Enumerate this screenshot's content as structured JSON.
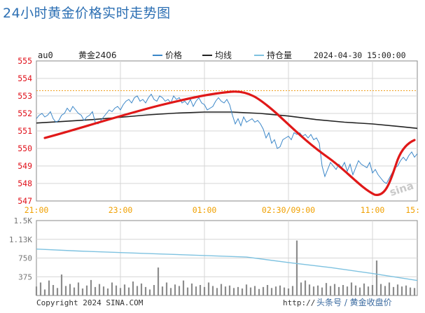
{
  "page": {
    "title": "24小时黄金价格实时走势图",
    "symbol": "au0",
    "contract": "黄金2406",
    "legend_price": "价格",
    "legend_avg": "均线",
    "legend_oi": "持仓量",
    "datetime": "2024-04-30 15:00:00",
    "copyright": "Copyright 2024 SINA.COM",
    "watermark_url": "http://",
    "watermark_text": "头条号 / 黄金收盘价",
    "logo_text": "sina"
  },
  "colors": {
    "price": "#3a86c8",
    "avg": "#222222",
    "oi": "#7ec2e0",
    "annotation": "#e01818",
    "reference": "#f0a020",
    "grid": "#d6d6d6",
    "price_axis": "#e0101a",
    "time_axis": "#f0a000",
    "volume_axis": "#777777"
  },
  "chart_data": [
    {
      "type": "line",
      "title": "24小时黄金价格实时走势图",
      "ylim": [
        547,
        555
      ],
      "y_ticks": [
        "555",
        "554",
        "553",
        "552",
        "551",
        "550",
        "549",
        "548",
        "547"
      ],
      "x_ticks": [
        "21:00",
        "23:00",
        "01:00",
        "02:30/09:00",
        "11:00",
        "15:"
      ],
      "reference_line": 553.3,
      "series": [
        {
          "name": "价格",
          "x": [
            0,
            4,
            8,
            12,
            16,
            20,
            24,
            28,
            32,
            36,
            40,
            44,
            48,
            52,
            56,
            60,
            64,
            68,
            72,
            76,
            80,
            84,
            88,
            92,
            96,
            100,
            104,
            108,
            112,
            116,
            120,
            124,
            128,
            132,
            136,
            140,
            144,
            148,
            152,
            156,
            160,
            164,
            168,
            172,
            176,
            180,
            184,
            188,
            192,
            196,
            200,
            204,
            208,
            212,
            216,
            220,
            224,
            228,
            232,
            236,
            240,
            244,
            248,
            252,
            256,
            260,
            264,
            268,
            272,
            276,
            280,
            284,
            288,
            292,
            296,
            300,
            304,
            308,
            312,
            316,
            320,
            324,
            328,
            332,
            336,
            340,
            344,
            348,
            352,
            356,
            360,
            364,
            368,
            372,
            376,
            380,
            384,
            388,
            392,
            396,
            400,
            404,
            408,
            412,
            416,
            420,
            424,
            428,
            432,
            436,
            440,
            444,
            448,
            452,
            456,
            460,
            464,
            468,
            472,
            476,
            480,
            484,
            488,
            492,
            496,
            500,
            504,
            508,
            512,
            516,
            520,
            524,
            528,
            532,
            536,
            540,
            544
          ],
          "values": [
            551.7,
            551.9,
            552.0,
            551.8,
            551.9,
            552.1,
            551.7,
            551.5,
            551.6,
            551.9,
            552.0,
            552.3,
            552.1,
            552.4,
            552.2,
            552.0,
            551.9,
            551.6,
            551.8,
            551.9,
            552.1,
            551.5,
            551.4,
            551.6,
            551.8,
            552.0,
            552.2,
            552.1,
            552.3,
            552.4,
            552.2,
            552.5,
            552.7,
            552.8,
            552.6,
            552.9,
            553.0,
            552.7,
            552.8,
            552.6,
            552.9,
            553.1,
            552.8,
            552.7,
            553.0,
            552.9,
            552.7,
            552.8,
            552.6,
            553.0,
            552.8,
            552.9,
            552.6,
            552.7,
            552.5,
            552.8,
            552.4,
            552.7,
            552.9,
            552.6,
            552.5,
            552.2,
            552.3,
            552.4,
            552.7,
            552.9,
            552.7,
            552.6,
            552.8,
            552.5,
            551.9,
            551.4,
            551.7,
            551.3,
            551.8,
            551.5,
            551.6,
            551.7,
            551.5,
            551.6,
            551.4,
            551.1,
            550.6,
            550.9,
            550.3,
            550.5,
            550.0,
            550.1,
            550.5,
            550.6,
            550.7,
            550.5,
            550.9,
            550.8,
            550.9,
            550.7,
            550.8,
            550.6,
            550.8,
            550.5,
            550.6,
            550.3,
            549.0,
            548.4,
            548.8,
            549.2,
            549.0,
            548.8,
            549.1,
            548.9,
            549.2,
            548.7,
            549.1,
            548.5,
            548.9,
            549.3,
            549.1,
            549.0,
            548.9,
            549.2,
            548.6,
            548.8,
            548.5,
            548.3,
            548.1,
            548.0,
            548.3,
            548.6,
            548.9,
            549.0,
            549.3,
            549.5,
            549.3,
            549.6,
            549.8,
            549.5,
            549.7
          ]
        },
        {
          "name": "均线",
          "x": [
            0,
            40,
            80,
            120,
            160,
            200,
            240,
            280,
            320,
            360,
            400,
            440,
            480,
            520,
            544
          ],
          "values": [
            551.45,
            551.55,
            551.65,
            551.78,
            551.92,
            552.02,
            552.08,
            552.08,
            552.0,
            551.85,
            551.65,
            551.5,
            551.4,
            551.25,
            551.15
          ]
        }
      ]
    },
    {
      "type": "area",
      "ylim": [
        0,
        1500
      ],
      "y_ticks": [
        "1.5K",
        "1.13K",
        "750",
        "375"
      ],
      "series": [
        {
          "name": "持仓量",
          "x": [
            0,
            60,
            120,
            180,
            240,
            300,
            360,
            420,
            480,
            544
          ],
          "values": [
            930,
            890,
            860,
            830,
            800,
            770,
            660,
            560,
            440,
            300
          ]
        }
      ],
      "volume_x": [
        0,
        6,
        12,
        18,
        24,
        30,
        36,
        42,
        48,
        54,
        60,
        66,
        72,
        78,
        84,
        90,
        96,
        102,
        108,
        114,
        120,
        126,
        132,
        138,
        144,
        150,
        156,
        162,
        168,
        174,
        180,
        186,
        192,
        198,
        204,
        210,
        216,
        222,
        228,
        234,
        240,
        246,
        252,
        258,
        264,
        270,
        276,
        282,
        288,
        294,
        300,
        306,
        312,
        318,
        324,
        330,
        336,
        342,
        348,
        354,
        360,
        366,
        372,
        378,
        384,
        390,
        396,
        402,
        408,
        414,
        420,
        426,
        432,
        438,
        444,
        450,
        456,
        462,
        468,
        474,
        480,
        486,
        492,
        498,
        504,
        510,
        516,
        522,
        528,
        534,
        540
      ],
      "volume": [
        180,
        260,
        120,
        300,
        210,
        150,
        420,
        190,
        230,
        160,
        260,
        140,
        200,
        310,
        170,
        230,
        180,
        140,
        260,
        200,
        150,
        220,
        160,
        280,
        190,
        240,
        170,
        120,
        210,
        560,
        180,
        260,
        150,
        220,
        190,
        300,
        160,
        240,
        180,
        210,
        170,
        260,
        190,
        150,
        230,
        180,
        200,
        150,
        170,
        140,
        220,
        160,
        190,
        130,
        170,
        210,
        150,
        180,
        200,
        160,
        140,
        190,
        1100,
        260,
        300,
        220,
        180,
        200,
        160,
        250,
        190,
        230,
        170,
        210,
        180,
        260,
        200,
        160,
        240,
        180,
        210,
        700,
        230,
        190,
        260,
        170,
        220,
        180,
        200,
        160,
        150
      ]
    }
  ]
}
